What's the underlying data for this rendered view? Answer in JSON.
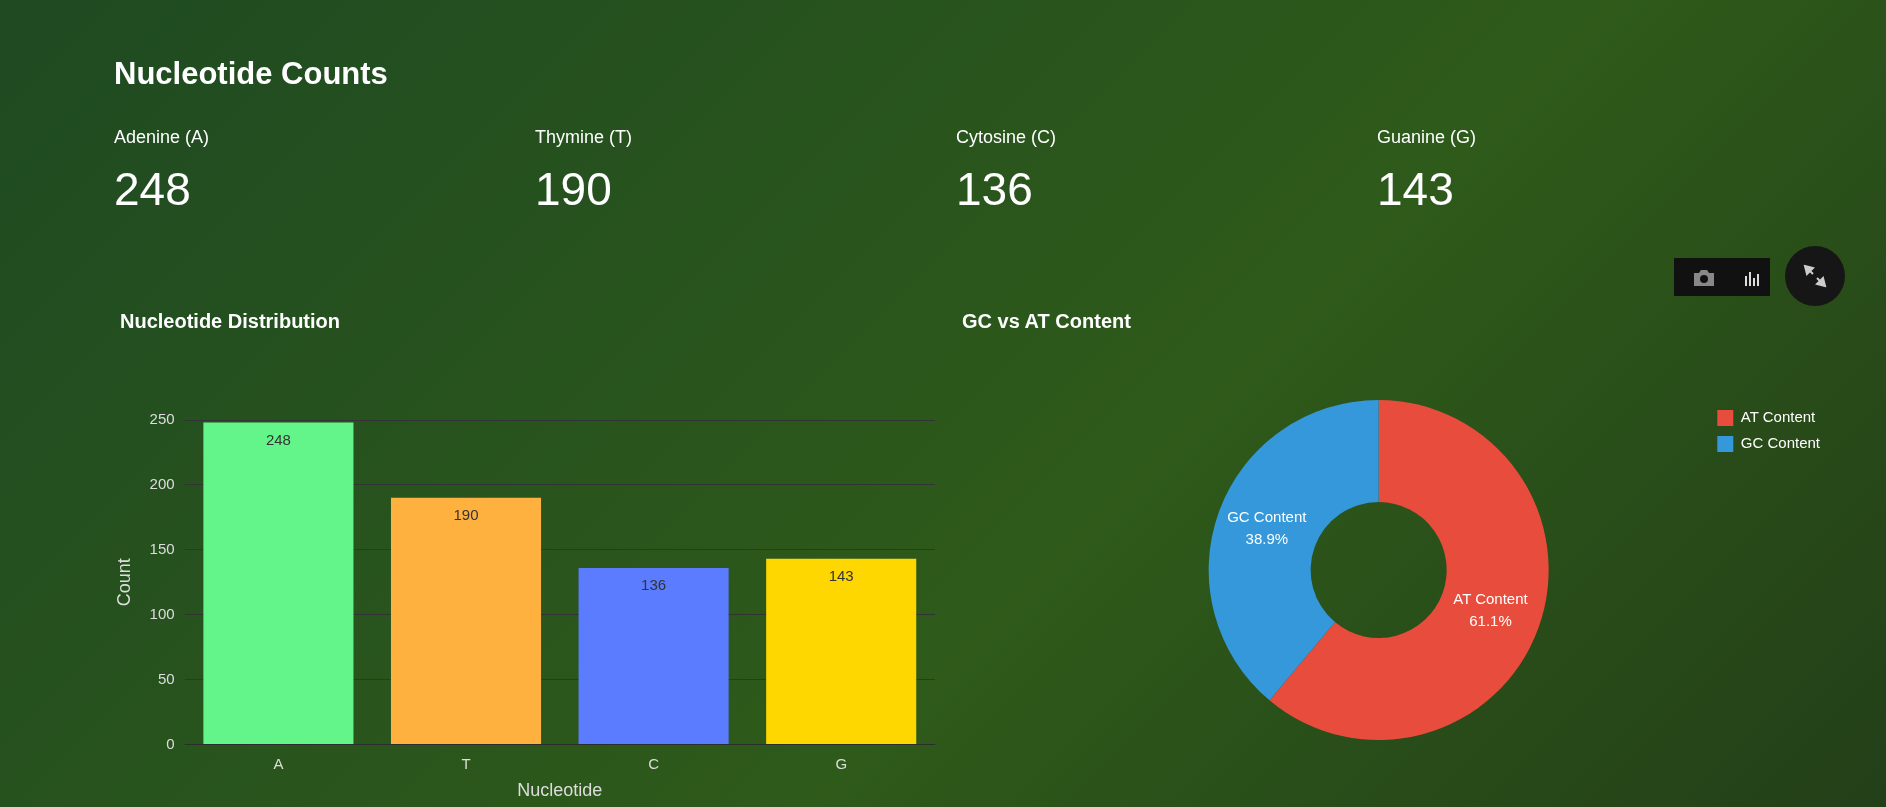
{
  "chart_data": [
    {
      "type": "other",
      "title": "Nucleotide Counts",
      "categories": [
        "Adenine (A)",
        "Thymine (T)",
        "Cytosine (C)",
        "Guanine (G)"
      ],
      "values": [
        248,
        190,
        136,
        143
      ],
      "data_labels": true
    },
    {
      "type": "bar",
      "title": "Nucleotide Distribution",
      "xlabel": "Nucleotide",
      "ylabel": "Count",
      "categories": [
        "A",
        "T",
        "C",
        "G"
      ],
      "values": [
        248,
        190,
        136,
        143
      ],
      "colors": [
        "#63f58a",
        "#ffb13f",
        "#5b7cff",
        "#ffd700"
      ],
      "ylim": [
        0,
        250
      ],
      "yticks": [
        0,
        50,
        100,
        150,
        200,
        250
      ],
      "grid": "y",
      "data_labels": true
    },
    {
      "type": "donut",
      "title": "GC vs AT Content",
      "categories": [
        "AT Content",
        "GC Content"
      ],
      "values": [
        61.1,
        38.9
      ],
      "colors": [
        "#e74c3c",
        "#3498db"
      ],
      "legend": "top right",
      "value_labels": [
        "61.1%",
        "38.9%"
      ]
    }
  ]
}
